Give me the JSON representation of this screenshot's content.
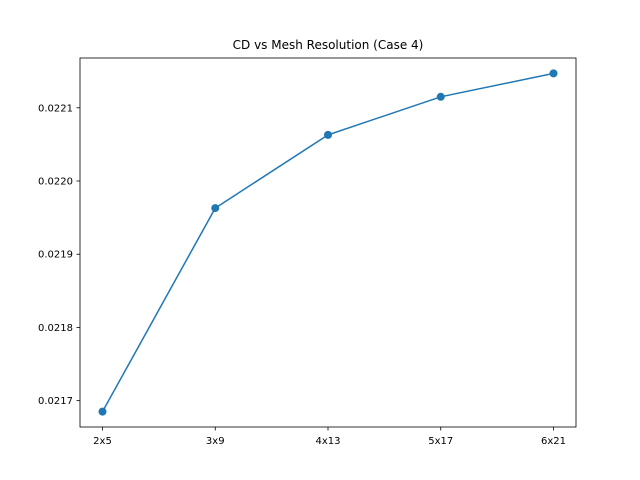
{
  "chart_data": {
    "type": "line",
    "title": "CD vs Mesh Resolution (Case 4)",
    "xlabel": "",
    "ylabel": "",
    "categories": [
      "2x5",
      "3x9",
      "4x13",
      "5x17",
      "6x21"
    ],
    "series": [
      {
        "values": [
          0.021685,
          0.021963,
          0.022063,
          0.022115,
          0.022147
        ],
        "color": "#1f77b4",
        "marker": "circle"
      }
    ],
    "ylim": [
      0.021664,
      0.022168
    ],
    "yticks": [
      0.0217,
      0.0218,
      0.0219,
      0.022,
      0.0221
    ],
    "ytick_labels": [
      "0.0217",
      "0.0218",
      "0.0219",
      "0.0220",
      "0.0221"
    ],
    "grid": false,
    "legend": false
  }
}
